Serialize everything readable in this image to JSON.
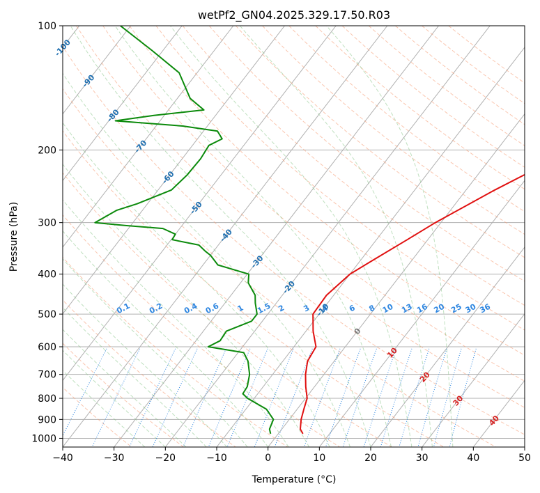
{
  "chart_data": {
    "type": "line",
    "title": "wetPf2_GN04.2025.329.17.50.R03",
    "xlabel": "Temperature (°C)",
    "ylabel": "Pressure (hPa)",
    "xlim": [
      -40,
      50
    ],
    "ylim": [
      1050,
      100
    ],
    "y_scale": "log",
    "grid": true,
    "x_ticks": [
      -40,
      -30,
      -20,
      -10,
      0,
      10,
      20,
      30,
      40,
      50
    ],
    "y_ticks": [
      100,
      200,
      300,
      400,
      500,
      600,
      700,
      800,
      900,
      1000
    ],
    "x_tick_labels": [
      "−40",
      "−30",
      "−20",
      "−10",
      "0",
      "10",
      "20",
      "30",
      "40",
      "50"
    ],
    "y_tick_labels": [
      "100",
      "200",
      "300",
      "400",
      "500",
      "600",
      "700",
      "800",
      "900",
      "1000"
    ],
    "isotherm_labels": [
      {
        "text": "-100",
        "t": -100,
        "p": 113
      },
      {
        "text": "-90",
        "t": -90,
        "p": 136
      },
      {
        "text": "-80",
        "t": -80,
        "p": 165
      },
      {
        "text": "-70",
        "t": -70,
        "p": 196
      },
      {
        "text": "-60",
        "t": -60,
        "p": 233
      },
      {
        "text": "-50",
        "t": -50,
        "p": 276
      },
      {
        "text": "-40",
        "t": -40,
        "p": 322
      },
      {
        "text": "-30",
        "t": -30,
        "p": 373
      },
      {
        "text": "-20",
        "t": -20,
        "p": 430
      },
      {
        "text": "-10",
        "t": -10,
        "p": 488
      },
      {
        "text": "0",
        "t": 0,
        "p": 550
      },
      {
        "text": "10",
        "t": 10,
        "p": 620
      },
      {
        "text": "20",
        "t": 20,
        "p": 710
      },
      {
        "text": "30",
        "t": 30,
        "p": 810
      },
      {
        "text": "40",
        "t": 40,
        "p": 905
      }
    ],
    "mixing_ratio_labels": [
      "0.1",
      "0.2",
      "0.4",
      "0.6",
      "1",
      "1.5",
      "2",
      "3",
      "4",
      "6",
      "8",
      "10",
      "13",
      "16",
      "20",
      "25",
      "30",
      "36"
    ],
    "mixing_ratio_label_pressure": 500,
    "series": [
      {
        "kind": "temperature",
        "color": "#e01010",
        "p": [
          975,
          950,
          900,
          850,
          800,
          750,
          700,
          650,
          600,
          550,
          500,
          450,
          400,
          370,
          330,
          300,
          250,
          200,
          170,
          140,
          120,
          100
        ],
        "t": [
          4.8,
          3.6,
          2.3,
          1.3,
          0.3,
          -1.7,
          -3.6,
          -5.2,
          -5.7,
          -8.6,
          -11.2,
          -11.4,
          -10.0,
          -7.6,
          -4.0,
          -1.1,
          5.6,
          14.8,
          22.3,
          29.5,
          35.0,
          39.5
        ]
      },
      {
        "kind": "dewpoint",
        "color": "#0b8a0b",
        "p": [
          975,
          950,
          900,
          850,
          800,
          780,
          750,
          700,
          650,
          620,
          600,
          580,
          550,
          520,
          500,
          470,
          450,
          420,
          400,
          380,
          360,
          352,
          340,
          330,
          320,
          310,
          305,
          300,
          280,
          270,
          250,
          230,
          210,
          195,
          188,
          180,
          175,
          170,
          165,
          160,
          150,
          130,
          115,
          100
        ],
        "t": [
          -1.5,
          -2.4,
          -3.1,
          -6.0,
          -11.3,
          -12.9,
          -13.1,
          -14.5,
          -16.8,
          -18.9,
          -26.7,
          -25.3,
          -25.5,
          -22.1,
          -22.1,
          -24.1,
          -25.3,
          -28.5,
          -29.7,
          -37.1,
          -40.0,
          -41.6,
          -43.8,
          -49.8,
          -50.0,
          -53.3,
          -61.0,
          -67.4,
          -65.0,
          -62.0,
          -57.4,
          -56.6,
          -56.4,
          -56.8,
          -55.2,
          -57.3,
          -64.8,
          -78.7,
          -72.0,
          -63.1,
          -67.5,
          -73.5,
          -82.0,
          -92.0
        ]
      }
    ]
  }
}
